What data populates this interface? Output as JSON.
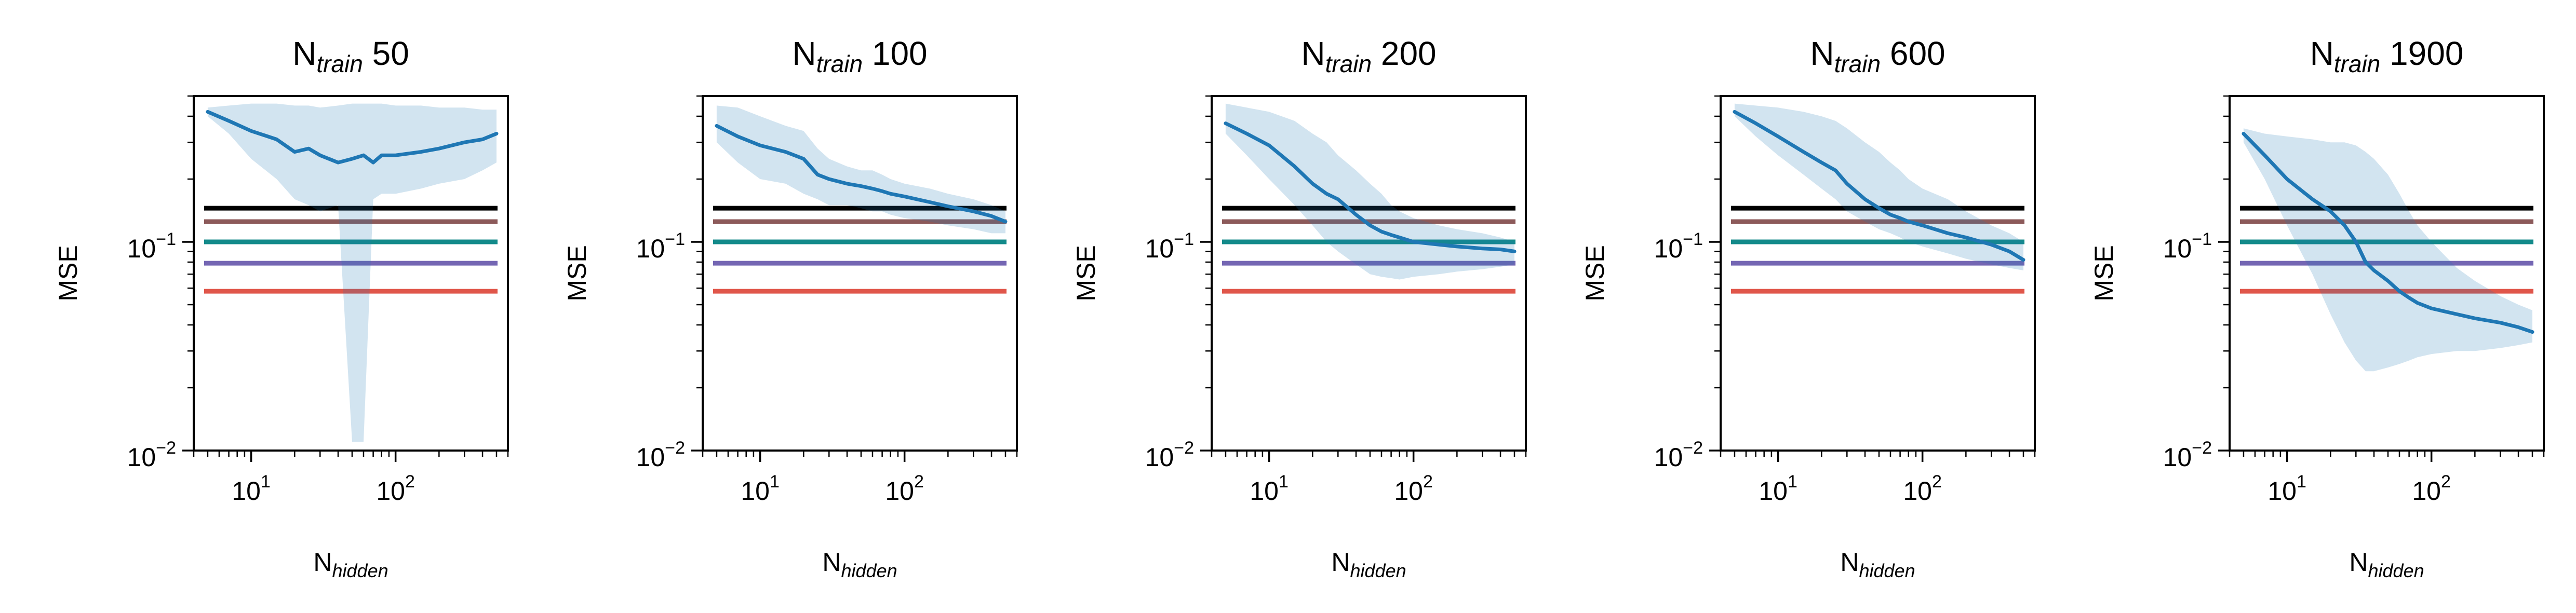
{
  "chart_data": [
    {
      "type": "line",
      "title_main": "N",
      "title_sub": "train",
      "title_value": "50",
      "xlabel_main": "N",
      "xlabel_sub": "hidden",
      "ylabel": "MSE",
      "xscale": "log",
      "yscale": "log",
      "xlim": [
        4,
        600
      ],
      "ylim": [
        0.01,
        0.5
      ],
      "xticks": [
        {
          "base": "10",
          "exp": "1",
          "value": 10
        },
        {
          "base": "10",
          "exp": "2",
          "value": 100
        }
      ],
      "yticks": [
        {
          "base": "10",
          "exp": "−2",
          "value": 0.01
        },
        {
          "base": "10",
          "exp": "−1",
          "value": 0.1
        }
      ],
      "hlines": [
        {
          "y": 0.145,
          "color": "#000000"
        },
        {
          "y": 0.125,
          "color": "#8c5a5a"
        },
        {
          "y": 0.1,
          "color": "#138a8a"
        },
        {
          "y": 0.079,
          "color": "#7466b3"
        },
        {
          "y": 0.058,
          "color": "#e0564a"
        }
      ],
      "series": [
        {
          "x": [
            5,
            7,
            10,
            15,
            20,
            25,
            30,
            40,
            50,
            60,
            70,
            80,
            100,
            150,
            200,
            300,
            400,
            500
          ],
          "y": [
            0.42,
            0.38,
            0.34,
            0.31,
            0.27,
            0.28,
            0.26,
            0.24,
            0.25,
            0.26,
            0.24,
            0.26,
            0.26,
            0.27,
            0.28,
            0.3,
            0.31,
            0.33
          ],
          "lower": [
            0.4,
            0.33,
            0.25,
            0.2,
            0.16,
            0.15,
            0.14,
            0.15,
            0.011,
            0.011,
            0.16,
            0.17,
            0.17,
            0.18,
            0.19,
            0.2,
            0.22,
            0.24
          ],
          "upper": [
            0.44,
            0.45,
            0.46,
            0.46,
            0.45,
            0.45,
            0.44,
            0.45,
            0.46,
            0.46,
            0.46,
            0.46,
            0.45,
            0.45,
            0.44,
            0.44,
            0.43,
            0.43
          ],
          "color": "#1f77b4"
        }
      ]
    },
    {
      "type": "line",
      "title_main": "N",
      "title_sub": "train",
      "title_value": "100",
      "xlabel_main": "N",
      "xlabel_sub": "hidden",
      "ylabel": "MSE",
      "xscale": "log",
      "yscale": "log",
      "xlim": [
        4,
        600
      ],
      "ylim": [
        0.01,
        0.5
      ],
      "xticks": [
        {
          "base": "10",
          "exp": "1",
          "value": 10
        },
        {
          "base": "10",
          "exp": "2",
          "value": 100
        }
      ],
      "yticks": [
        {
          "base": "10",
          "exp": "−2",
          "value": 0.01
        },
        {
          "base": "10",
          "exp": "−1",
          "value": 0.1
        }
      ],
      "hlines": [
        {
          "y": 0.145,
          "color": "#000000"
        },
        {
          "y": 0.125,
          "color": "#8c5a5a"
        },
        {
          "y": 0.1,
          "color": "#138a8a"
        },
        {
          "y": 0.079,
          "color": "#7466b3"
        },
        {
          "y": 0.058,
          "color": "#e0564a"
        }
      ],
      "series": [
        {
          "x": [
            5,
            7,
            10,
            15,
            20,
            25,
            30,
            40,
            50,
            60,
            70,
            80,
            100,
            150,
            200,
            300,
            400,
            500
          ],
          "y": [
            0.36,
            0.32,
            0.29,
            0.27,
            0.25,
            0.21,
            0.2,
            0.19,
            0.185,
            0.18,
            0.175,
            0.17,
            0.165,
            0.155,
            0.148,
            0.14,
            0.133,
            0.125
          ],
          "lower": [
            0.3,
            0.24,
            0.2,
            0.19,
            0.17,
            0.16,
            0.15,
            0.15,
            0.145,
            0.14,
            0.14,
            0.135,
            0.13,
            0.125,
            0.12,
            0.115,
            0.11,
            0.11
          ],
          "upper": [
            0.45,
            0.44,
            0.4,
            0.36,
            0.34,
            0.28,
            0.25,
            0.23,
            0.22,
            0.22,
            0.21,
            0.2,
            0.19,
            0.18,
            0.17,
            0.16,
            0.15,
            0.14
          ],
          "color": "#1f77b4"
        }
      ]
    },
    {
      "type": "line",
      "title_main": "N",
      "title_sub": "train",
      "title_value": "200",
      "xlabel_main": "N",
      "xlabel_sub": "hidden",
      "ylabel": "MSE",
      "xscale": "log",
      "yscale": "log",
      "xlim": [
        4,
        600
      ],
      "ylim": [
        0.01,
        0.5
      ],
      "xticks": [
        {
          "base": "10",
          "exp": "1",
          "value": 10
        },
        {
          "base": "10",
          "exp": "2",
          "value": 100
        }
      ],
      "yticks": [
        {
          "base": "10",
          "exp": "−2",
          "value": 0.01
        },
        {
          "base": "10",
          "exp": "−1",
          "value": 0.1
        }
      ],
      "hlines": [
        {
          "y": 0.145,
          "color": "#000000"
        },
        {
          "y": 0.125,
          "color": "#8c5a5a"
        },
        {
          "y": 0.1,
          "color": "#138a8a"
        },
        {
          "y": 0.079,
          "color": "#7466b3"
        },
        {
          "y": 0.058,
          "color": "#e0564a"
        }
      ],
      "series": [
        {
          "x": [
            5,
            7,
            10,
            15,
            20,
            25,
            30,
            40,
            50,
            60,
            70,
            80,
            100,
            150,
            200,
            300,
            400,
            500
          ],
          "y": [
            0.37,
            0.33,
            0.29,
            0.23,
            0.19,
            0.17,
            0.16,
            0.135,
            0.12,
            0.112,
            0.108,
            0.105,
            0.1,
            0.097,
            0.095,
            0.093,
            0.092,
            0.09
          ],
          "lower": [
            0.33,
            0.26,
            0.2,
            0.15,
            0.12,
            0.1,
            0.09,
            0.078,
            0.07,
            0.068,
            0.067,
            0.066,
            0.068,
            0.07,
            0.072,
            0.074,
            0.076,
            0.078
          ],
          "upper": [
            0.46,
            0.44,
            0.42,
            0.38,
            0.33,
            0.3,
            0.26,
            0.22,
            0.19,
            0.17,
            0.15,
            0.14,
            0.13,
            0.12,
            0.115,
            0.11,
            0.105,
            0.1
          ],
          "color": "#1f77b4"
        }
      ]
    },
    {
      "type": "line",
      "title_main": "N",
      "title_sub": "train",
      "title_value": "600",
      "xlabel_main": "N",
      "xlabel_sub": "hidden",
      "ylabel": "MSE",
      "xscale": "log",
      "yscale": "log",
      "xlim": [
        4,
        600
      ],
      "ylim": [
        0.01,
        0.5
      ],
      "xticks": [
        {
          "base": "10",
          "exp": "1",
          "value": 10
        },
        {
          "base": "10",
          "exp": "2",
          "value": 100
        }
      ],
      "yticks": [
        {
          "base": "10",
          "exp": "−2",
          "value": 0.01
        },
        {
          "base": "10",
          "exp": "−1",
          "value": 0.1
        }
      ],
      "hlines": [
        {
          "y": 0.145,
          "color": "#000000"
        },
        {
          "y": 0.125,
          "color": "#8c5a5a"
        },
        {
          "y": 0.1,
          "color": "#138a8a"
        },
        {
          "y": 0.079,
          "color": "#7466b3"
        },
        {
          "y": 0.058,
          "color": "#e0564a"
        }
      ],
      "series": [
        {
          "x": [
            5,
            7,
            10,
            15,
            20,
            25,
            30,
            40,
            50,
            60,
            70,
            80,
            100,
            150,
            200,
            300,
            400,
            500
          ],
          "y": [
            0.42,
            0.37,
            0.32,
            0.27,
            0.24,
            0.22,
            0.19,
            0.16,
            0.145,
            0.135,
            0.13,
            0.125,
            0.12,
            0.11,
            0.105,
            0.097,
            0.09,
            0.082
          ],
          "lower": [
            0.4,
            0.32,
            0.26,
            0.21,
            0.18,
            0.16,
            0.14,
            0.125,
            0.115,
            0.11,
            0.105,
            0.1,
            0.095,
            0.088,
            0.083,
            0.078,
            0.075,
            0.073
          ],
          "upper": [
            0.46,
            0.45,
            0.44,
            0.42,
            0.4,
            0.38,
            0.35,
            0.3,
            0.27,
            0.24,
            0.22,
            0.2,
            0.18,
            0.16,
            0.14,
            0.12,
            0.11,
            0.1
          ],
          "color": "#1f77b4"
        }
      ]
    },
    {
      "type": "line",
      "title_main": "N",
      "title_sub": "train",
      "title_value": "1900",
      "xlabel_main": "N",
      "xlabel_sub": "hidden",
      "ylabel": "MSE",
      "xscale": "log",
      "yscale": "log",
      "xlim": [
        4,
        600
      ],
      "ylim": [
        0.01,
        0.5
      ],
      "xticks": [
        {
          "base": "10",
          "exp": "1",
          "value": 10
        },
        {
          "base": "10",
          "exp": "2",
          "value": 100
        }
      ],
      "yticks": [
        {
          "base": "10",
          "exp": "−2",
          "value": 0.01
        },
        {
          "base": "10",
          "exp": "−1",
          "value": 0.1
        }
      ],
      "hlines": [
        {
          "y": 0.145,
          "color": "#000000"
        },
        {
          "y": 0.125,
          "color": "#8c5a5a"
        },
        {
          "y": 0.1,
          "color": "#138a8a"
        },
        {
          "y": 0.079,
          "color": "#7466b3"
        },
        {
          "y": 0.058,
          "color": "#e0564a"
        }
      ],
      "series": [
        {
          "x": [
            5,
            7,
            10,
            15,
            20,
            25,
            30,
            35,
            40,
            50,
            60,
            70,
            80,
            100,
            150,
            200,
            300,
            400,
            500
          ],
          "y": [
            0.33,
            0.26,
            0.2,
            0.16,
            0.14,
            0.12,
            0.1,
            0.08,
            0.073,
            0.065,
            0.058,
            0.054,
            0.051,
            0.048,
            0.045,
            0.043,
            0.041,
            0.039,
            0.037
          ],
          "lower": [
            0.3,
            0.2,
            0.12,
            0.07,
            0.045,
            0.033,
            0.027,
            0.024,
            0.024,
            0.025,
            0.026,
            0.027,
            0.028,
            0.029,
            0.03,
            0.03,
            0.031,
            0.032,
            0.033
          ],
          "upper": [
            0.35,
            0.33,
            0.32,
            0.31,
            0.3,
            0.3,
            0.29,
            0.27,
            0.25,
            0.21,
            0.17,
            0.14,
            0.12,
            0.1,
            0.075,
            0.065,
            0.055,
            0.05,
            0.047
          ],
          "color": "#1f77b4"
        }
      ]
    }
  ]
}
